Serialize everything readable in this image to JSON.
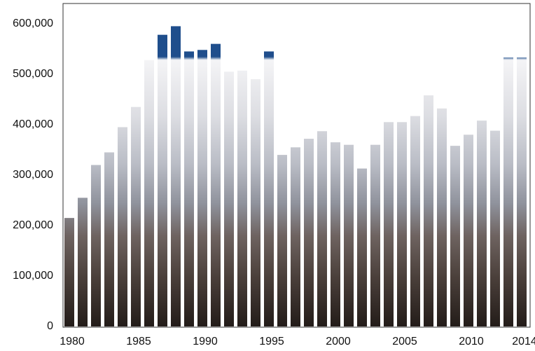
{
  "chart_data": {
    "type": "bar",
    "categories": [
      "1980",
      null,
      null,
      null,
      null,
      "1985",
      null,
      null,
      null,
      null,
      "1990",
      null,
      null,
      null,
      null,
      "1995",
      null,
      null,
      null,
      null,
      "2000",
      null,
      null,
      null,
      null,
      "2005",
      null,
      null,
      null,
      null,
      "2010",
      null,
      null,
      null,
      "2014"
    ],
    "values": [
      215000,
      255000,
      320000,
      345000,
      395000,
      435000,
      528000,
      578000,
      595000,
      545000,
      548000,
      560000,
      505000,
      507000,
      490000,
      545000,
      340000,
      355000,
      372000,
      387000,
      365000,
      360000,
      313000,
      360000,
      405000,
      405000,
      417000,
      458000,
      432000,
      358000,
      380000,
      408000,
      388000,
      533000,
      533000
    ],
    "color": "#1f4e8c",
    "ylim": [
      0,
      640000
    ],
    "yticks": [
      0,
      {
        "value": 100000,
        "label": "100,000"
      },
      {
        "value": 200000,
        "label": "200,000"
      },
      {
        "value": 300000,
        "label": "300,000"
      },
      {
        "value": 400000,
        "label": "400,000"
      },
      {
        "value": 500000,
        "label": "500,000"
      },
      {
        "value": 600000,
        "label": "600,000"
      }
    ]
  }
}
